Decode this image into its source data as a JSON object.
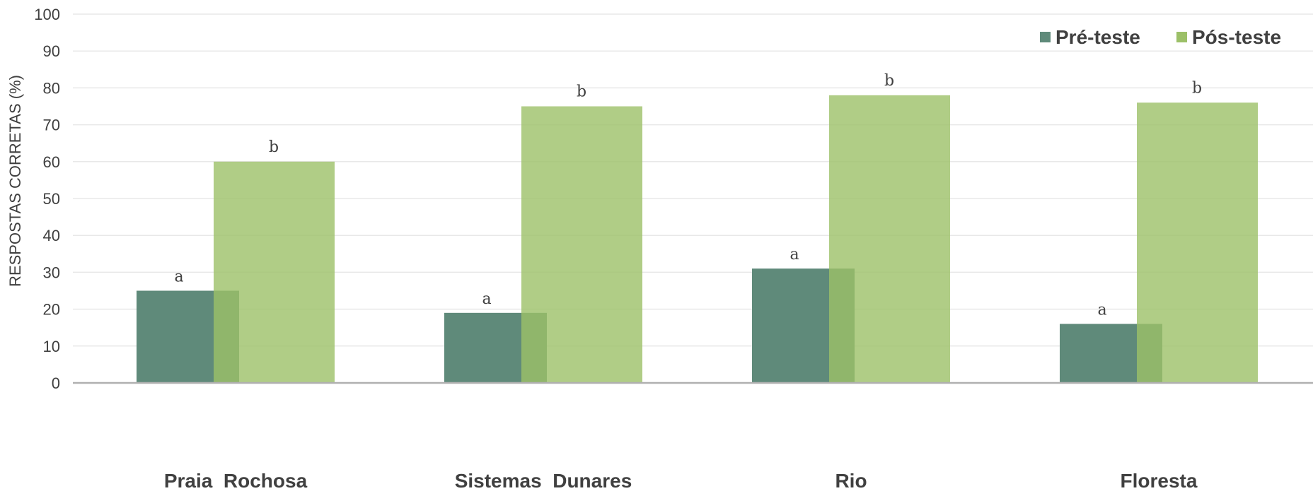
{
  "chart_data": {
    "type": "bar",
    "title": "",
    "xlabel": "",
    "ylabel": "RESPOSTAS CORRETAS (%)",
    "ylim": [
      0,
      100
    ],
    "yticks": [
      0,
      10,
      20,
      30,
      40,
      50,
      60,
      70,
      80,
      90,
      100
    ],
    "grid": true,
    "legend_position": "top-right",
    "categories": [
      "Praia  Rochosa",
      "Sistemas  Dunares",
      "Rio",
      "Floresta"
    ],
    "series": [
      {
        "name": "Pré-teste",
        "color": "#5f8a7a",
        "values": [
          25,
          19,
          31,
          16
        ],
        "labels": [
          "a",
          "a",
          "a",
          "a"
        ]
      },
      {
        "name": "Pós-teste",
        "color": "#9cc068",
        "values": [
          60,
          75,
          78,
          76
        ],
        "labels": [
          "b",
          "b",
          "b",
          "b"
        ]
      }
    ]
  }
}
